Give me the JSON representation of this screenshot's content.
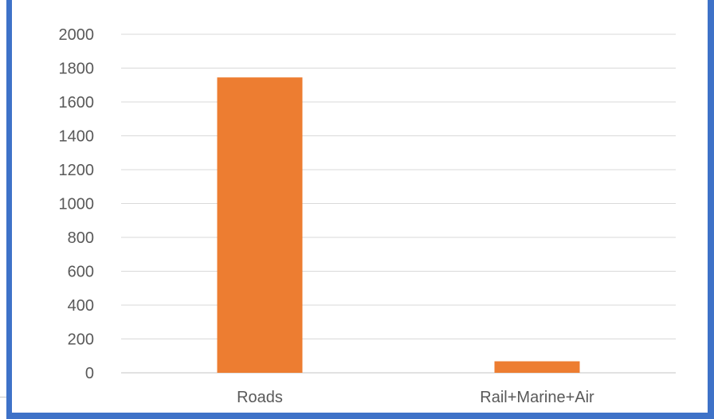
{
  "chart_data": {
    "type": "bar",
    "categories": [
      "Roads",
      "Rail+Marine+Air"
    ],
    "values": [
      1745,
      68
    ],
    "ylim": [
      0,
      2000
    ],
    "yticks": [
      "2000",
      "1800",
      "1600",
      "1400",
      "1200",
      "1000",
      "800",
      "600",
      "400",
      "200",
      "0"
    ],
    "grid": true,
    "legend": "none",
    "colors": {
      "bar": "#ED7D31",
      "grid": "#D9D9D9",
      "axis": "#D9D9D9",
      "border": "#3E72C8"
    }
  }
}
